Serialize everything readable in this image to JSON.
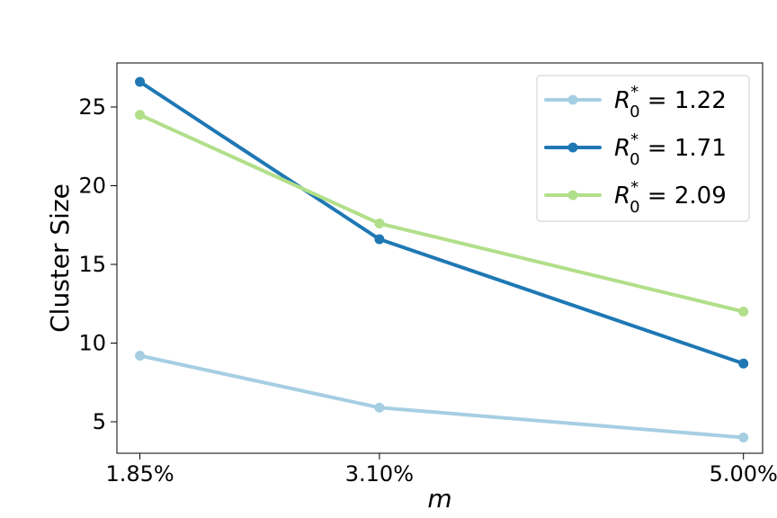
{
  "chart_data": {
    "type": "line",
    "title": "",
    "xlabel": "m",
    "ylabel": "Cluster Size",
    "categories": [
      "1.85%",
      "3.10%",
      "5.00%"
    ],
    "x": [
      1.85,
      3.1,
      5.0
    ],
    "xlim": [
      1.73,
      5.1
    ],
    "ylim": [
      3.0,
      27.8
    ],
    "yticks": [
      5,
      10,
      15,
      20,
      25
    ],
    "grid": false,
    "legend_position": "top-right",
    "series": [
      {
        "name": "R0* = 1.22",
        "legend": {
          "symbol": "R",
          "sub": "0",
          "sup": "*",
          "rest": " = 1.22"
        },
        "color": "#a6cee3",
        "values": [
          9.2,
          5.9,
          4.0
        ]
      },
      {
        "name": "R0* = 1.71",
        "legend": {
          "symbol": "R",
          "sub": "0",
          "sup": "*",
          "rest": " = 1.71"
        },
        "color": "#1f78b4",
        "values": [
          26.6,
          16.6,
          8.7
        ]
      },
      {
        "name": "R0* = 2.09",
        "legend": {
          "symbol": "R",
          "sub": "0",
          "sup": "*",
          "rest": " = 2.09"
        },
        "color": "#b2df8a",
        "values": [
          24.5,
          17.6,
          12.0
        ]
      }
    ]
  }
}
